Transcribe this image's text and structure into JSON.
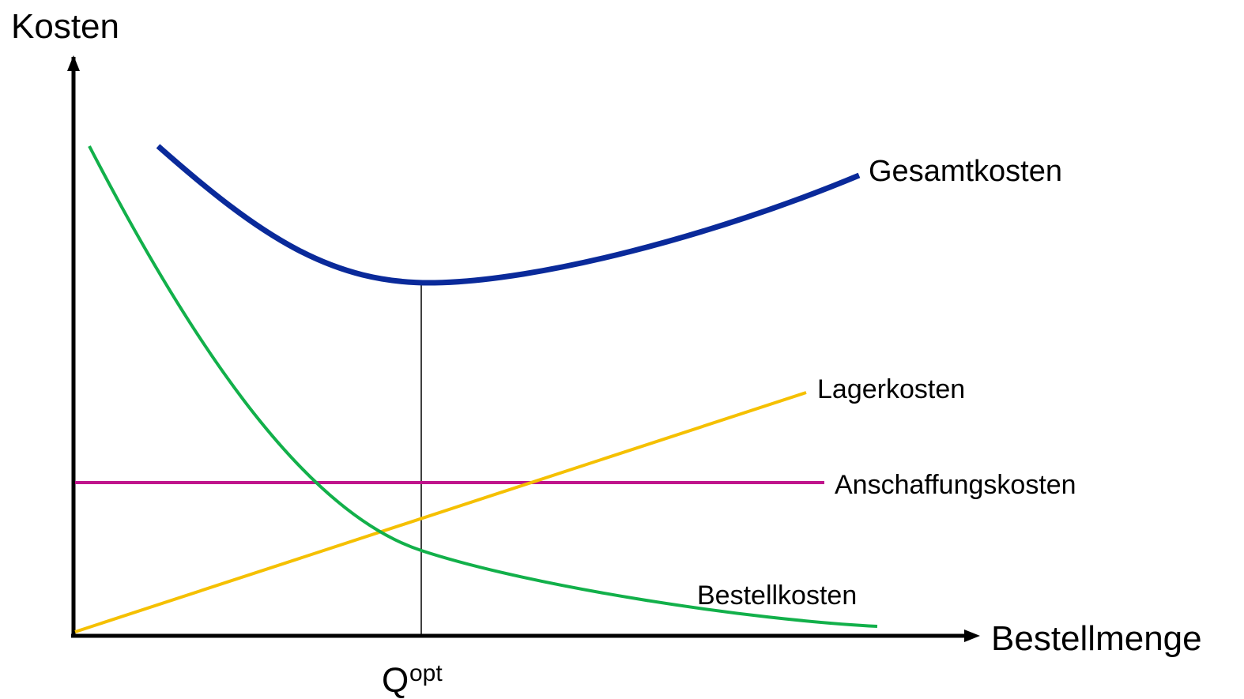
{
  "axes": {
    "y_label": "Kosten",
    "x_label": "Bestellmenge"
  },
  "curves": [
    {
      "label": "Gesamtkosten"
    },
    {
      "label": "Lagerkosten"
    },
    {
      "label": "Anschaffungskosten"
    },
    {
      "label": "Bestellkosten"
    }
  ],
  "marker": {
    "label": "Q",
    "superscript": "opt"
  }
}
